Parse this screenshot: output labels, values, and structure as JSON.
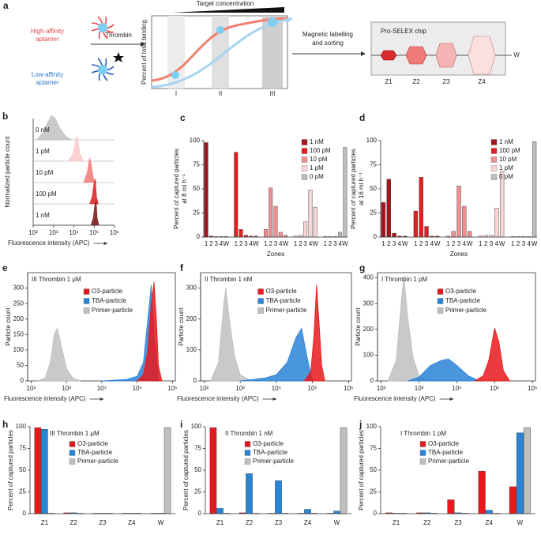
{
  "panel_a": {
    "panel": "a",
    "high_affinity": [
      "High-affinity",
      "aptamer"
    ],
    "low_affinity": [
      "Low-affinity",
      "aptamer"
    ],
    "thrombin": "Thrombin",
    "target_concentration": "Target concentration",
    "y_label": "Percent of total binding",
    "stages": [
      "I",
      "II",
      "III"
    ],
    "sorting": [
      "Magnetic labelling",
      "and sorting"
    ],
    "chip": "Pro-SELEX chip",
    "zones": [
      "Z1",
      "Z2",
      "Z3",
      "Z4"
    ],
    "waste": "W"
  },
  "chart_data": [
    {
      "panel": "b",
      "type": "ridgeline",
      "ylabel": "Normalized particle count",
      "xlabel": "Fluorescence intensity (APC)",
      "log_x": true,
      "xlim": [
        100,
        1000000
      ],
      "xticks": [
        {
          "value": 100,
          "label": "10²"
        },
        {
          "value": 1000,
          "label": "10³"
        },
        {
          "value": 10000,
          "label": "10⁴"
        },
        {
          "value": 100000,
          "label": "10⁵"
        },
        {
          "value": 1000000,
          "label": "10⁶"
        }
      ],
      "series": [
        {
          "name": "0 nM",
          "color": "#c4c4c4",
          "x": [
            150,
            300,
            500,
            800,
            1200,
            2000,
            4000,
            8000
          ],
          "values": [
            0,
            0.3,
            0.7,
            1,
            0.9,
            0.5,
            0.15,
            0
          ]
        },
        {
          "name": "1 pM",
          "color": "#f9cccc",
          "x": [
            5000,
            9000,
            13000,
            16000,
            20000,
            30000
          ],
          "values": [
            0,
            0.3,
            1,
            0.9,
            0.3,
            0
          ]
        },
        {
          "name": "10 pM",
          "color": "#f08080",
          "x": [
            30000,
            45000,
            60000,
            70000,
            90000,
            120000
          ],
          "values": [
            0,
            0.4,
            1,
            0.8,
            0.2,
            0
          ]
        },
        {
          "name": "100 pM",
          "color": "#dd2a2a",
          "x": [
            60000,
            80000,
            100000,
            115000,
            130000,
            160000
          ],
          "values": [
            0,
            0.3,
            0.9,
            1,
            0.3,
            0
          ]
        },
        {
          "name": "1 nM",
          "color": "#7a1f1f",
          "x": [
            70000,
            90000,
            110000,
            125000,
            140000,
            170000
          ],
          "values": [
            0,
            0.3,
            0.9,
            1,
            0.3,
            0
          ]
        }
      ]
    },
    {
      "panel": "c",
      "type": "blockbar",
      "ylabel": [
        "Percent of captured particles",
        "at 8 ml h⁻¹"
      ],
      "xlabel": "Zones",
      "categories": [
        "1",
        "2",
        "3",
        "4",
        "W"
      ],
      "ylim": [
        0,
        100
      ],
      "yticks": [
        0,
        25,
        50,
        75,
        100
      ],
      "legend": "top-right",
      "series": [
        {
          "name": "1 nM",
          "color": "#a3151c",
          "values": [
            98,
            1,
            0.5,
            0.5,
            0.5
          ]
        },
        {
          "name": "100 pM",
          "color": "#e02020",
          "values": [
            88,
            8,
            2,
            1,
            1
          ]
        },
        {
          "name": "10 pM",
          "color": "#f08f8f",
          "values": [
            8,
            51,
            32,
            5,
            2
          ]
        },
        {
          "name": "1 pM",
          "color": "#f9d5d5",
          "values": [
            1,
            2,
            16,
            49,
            31
          ]
        },
        {
          "name": "0 pM",
          "color": "#bdbdbd",
          "values": [
            0.5,
            0.5,
            0.5,
            5,
            93
          ]
        }
      ]
    },
    {
      "panel": "d",
      "type": "blockbar",
      "ylabel": [
        "Percent of captured particles",
        "at 16 ml h⁻¹"
      ],
      "xlabel": "Zones",
      "categories": [
        "1",
        "2",
        "3",
        "4",
        "W"
      ],
      "ylim": [
        0,
        100
      ],
      "yticks": [
        0,
        25,
        50,
        75,
        100
      ],
      "legend": "top-left",
      "series": [
        {
          "name": "1 nM",
          "color": "#a3151c",
          "values": [
            36,
            60,
            4,
            1,
            1
          ]
        },
        {
          "name": "100 pM",
          "color": "#e02020",
          "values": [
            27,
            62,
            11,
            1,
            1
          ]
        },
        {
          "name": "10 pM",
          "color": "#f08f8f",
          "values": [
            1,
            6,
            53,
            32,
            6
          ]
        },
        {
          "name": "1 pM",
          "color": "#f9d5d5",
          "values": [
            1,
            2,
            2,
            30,
            68
          ]
        },
        {
          "name": "0 pM",
          "color": "#bdbdbd",
          "values": [
            0.5,
            0.5,
            0.5,
            0.5,
            99
          ]
        }
      ]
    },
    {
      "panel": "e",
      "type": "area",
      "title": "III Thrombin 1 μM",
      "ylabel": "Particle count",
      "xlabel": "Fluorescence intensity (APC)",
      "log_x": true,
      "xlim": [
        80,
        1200000
      ],
      "ylim": [
        0,
        350
      ],
      "yticks": [
        0,
        50,
        100,
        150,
        200,
        250,
        300
      ],
      "xticks": [
        {
          "value": 100,
          "label": "10²"
        },
        {
          "value": 1000,
          "label": "10³"
        },
        {
          "value": 10000,
          "label": "10⁴"
        },
        {
          "value": 100000,
          "label": "10⁵"
        },
        {
          "value": 1000000,
          "label": "10⁶"
        }
      ],
      "series": [
        {
          "name": "O3-particle",
          "color": "#e8191c",
          "x": [
            100000,
            150000,
            200000,
            250000,
            300000,
            350000,
            400000,
            500000
          ],
          "values": [
            0,
            20,
            100,
            250,
            320,
            200,
            50,
            0
          ]
        },
        {
          "name": "TBA-particle",
          "color": "#2a84d6",
          "x": [
            10000,
            50000,
            100000,
            150000,
            200000,
            250000,
            300000,
            400000
          ],
          "values": [
            0,
            5,
            15,
            60,
            200,
            310,
            150,
            0
          ]
        },
        {
          "name": "Primer-particle",
          "color": "#bfbfbf",
          "x": [
            150,
            250,
            350,
            450,
            550,
            700,
            1000,
            1500,
            2500
          ],
          "values": [
            0,
            10,
            60,
            150,
            170,
            120,
            40,
            10,
            0
          ]
        }
      ]
    },
    {
      "panel": "f",
      "type": "area",
      "title": "II Thrombin 1 nM",
      "ylabel": "Particle count",
      "xlabel": "Fluorescence intensity (APC)",
      "log_x": true,
      "xlim": [
        80,
        1200000
      ],
      "ylim": [
        0,
        350
      ],
      "yticks": [
        0,
        100,
        200,
        300
      ],
      "xticks": [
        {
          "value": 100,
          "label": "10²"
        },
        {
          "value": 1000,
          "label": "10³"
        },
        {
          "value": 10000,
          "label": "10⁴"
        },
        {
          "value": 100000,
          "label": "10⁵"
        },
        {
          "value": 1000000,
          "label": "10⁶"
        }
      ],
      "series": [
        {
          "name": "O3-particle",
          "color": "#e8191c",
          "x": [
            60000,
            90000,
            110000,
            130000,
            150000,
            180000,
            220000
          ],
          "values": [
            0,
            30,
            150,
            310,
            200,
            50,
            0
          ]
        },
        {
          "name": "TBA-particle",
          "color": "#2a84d6",
          "x": [
            1000,
            5000,
            10000,
            20000,
            35000,
            50000,
            70000,
            100000
          ],
          "values": [
            0,
            10,
            20,
            60,
            140,
            170,
            80,
            0
          ]
        },
        {
          "name": "Primer-particle",
          "color": "#bfbfbf",
          "x": [
            150,
            250,
            350,
            400,
            500,
            700,
            1000,
            2000
          ],
          "values": [
            0,
            60,
            250,
            300,
            200,
            80,
            20,
            0
          ]
        }
      ]
    },
    {
      "panel": "g",
      "type": "area",
      "title": "I Thrombin 1 pM",
      "ylabel": "Particle count",
      "xlabel": "Fluorescence intensity (APC)",
      "log_x": true,
      "xlim": [
        80,
        1200000
      ],
      "ylim": [
        0,
        420
      ],
      "yticks": [
        0,
        100,
        200,
        300,
        400
      ],
      "xticks": [
        {
          "value": 100,
          "label": "10²"
        },
        {
          "value": 1000,
          "label": "10³"
        },
        {
          "value": 10000,
          "label": "10⁴"
        },
        {
          "value": 100000,
          "label": "10⁵"
        },
        {
          "value": 1000000,
          "label": "10⁶"
        }
      ],
      "series": [
        {
          "name": "O3-particle",
          "color": "#e8191c",
          "x": [
            30000,
            50000,
            70000,
            100000,
            130000,
            170000,
            250000
          ],
          "values": [
            0,
            20,
            80,
            205,
            150,
            40,
            0
          ]
        },
        {
          "name": "TBA-particle",
          "color": "#2a84d6",
          "x": [
            500,
            1000,
            2000,
            4000,
            6000,
            10000,
            20000,
            40000
          ],
          "values": [
            0,
            15,
            60,
            80,
            85,
            60,
            20,
            0
          ]
        },
        {
          "name": "Primer-particle",
          "color": "#bfbfbf",
          "x": [
            150,
            250,
            350,
            400,
            500,
            700,
            1000,
            2000
          ],
          "values": [
            0,
            80,
            330,
            400,
            250,
            90,
            20,
            0
          ]
        }
      ]
    },
    {
      "panel": "h",
      "type": "bar",
      "title": "III Thrombin 1 μM",
      "ylabel": "Percent of captured particles",
      "categories": [
        "Z1",
        "Z2",
        "Z3",
        "Z4",
        "W"
      ],
      "ylim": [
        0,
        100
      ],
      "yticks": [
        0,
        25,
        50,
        75,
        100
      ],
      "series": [
        {
          "name": "O3-particle",
          "color": "#e8191c",
          "values": [
            99,
            1,
            0.5,
            0.5,
            0.5
          ]
        },
        {
          "name": "TBA-particle",
          "color": "#2a84d6",
          "values": [
            97,
            1,
            0.5,
            0.5,
            0.5
          ]
        },
        {
          "name": "Primer-particle",
          "color": "#bfbfbf",
          "values": [
            0.5,
            0.5,
            0.5,
            0.5,
            99
          ]
        }
      ]
    },
    {
      "panel": "i",
      "type": "bar",
      "title": "II Thrombin 1 nM",
      "ylabel": "Percent of captured particles",
      "categories": [
        "Z1",
        "Z2",
        "Z3",
        "Z4",
        "W"
      ],
      "ylim": [
        0,
        100
      ],
      "yticks": [
        0,
        25,
        50,
        75,
        100
      ],
      "series": [
        {
          "name": "O3-particle",
          "color": "#e8191c",
          "values": [
            99,
            1,
            0.5,
            0.5,
            0.5
          ]
        },
        {
          "name": "TBA-particle",
          "color": "#2a84d6",
          "values": [
            6,
            46,
            38,
            5,
            3
          ]
        },
        {
          "name": "Primer-particle",
          "color": "#bfbfbf",
          "values": [
            0.5,
            0.5,
            0.5,
            0.5,
            99
          ]
        }
      ]
    },
    {
      "panel": "j",
      "type": "bar",
      "title": "I Thrombin 1 pM",
      "ylabel": "Percent of captured particles",
      "categories": [
        "Z1",
        "Z2",
        "Z3",
        "Z4",
        "W"
      ],
      "ylim": [
        0,
        100
      ],
      "yticks": [
        0,
        25,
        50,
        75,
        100
      ],
      "series": [
        {
          "name": "O3-particle",
          "color": "#e8191c",
          "values": [
            1,
            1,
            16,
            49,
            31
          ]
        },
        {
          "name": "TBA-particle",
          "color": "#2a84d6",
          "values": [
            0.5,
            1,
            1,
            4,
            93
          ]
        },
        {
          "name": "Primer-particle",
          "color": "#bfbfbf",
          "values": [
            0.5,
            0.5,
            0.5,
            0.5,
            99
          ]
        }
      ]
    }
  ]
}
